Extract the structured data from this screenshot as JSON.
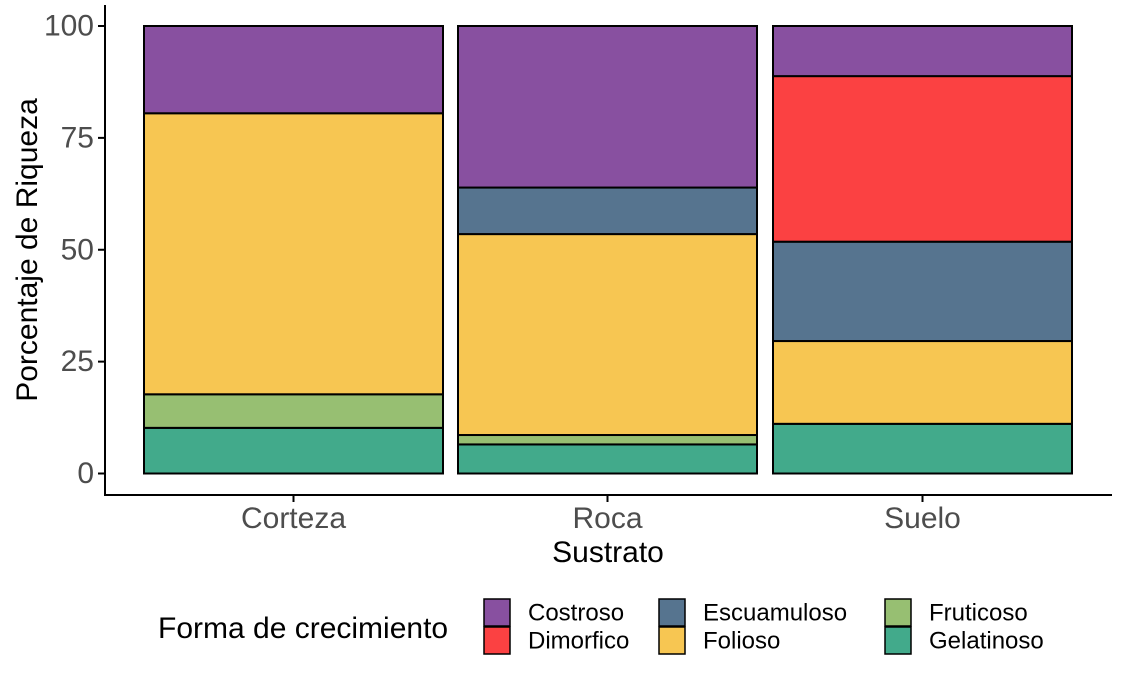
{
  "chart_data": {
    "type": "bar",
    "stacked": true,
    "xlabel": "Sustrato",
    "ylabel": "Porcentaje de Riqueza",
    "ylim": [
      0,
      100
    ],
    "yticks": [
      0,
      25,
      50,
      75,
      100
    ],
    "categories": [
      "Corteza",
      "Roca",
      "Suelo"
    ],
    "series": [
      {
        "name": "Gelatinoso",
        "color": "#42AA8B",
        "values": [
          10.2,
          6.5,
          11.1
        ]
      },
      {
        "name": "Fruticoso",
        "color": "#97BF72",
        "values": [
          7.5,
          2.1,
          0
        ]
      },
      {
        "name": "Folioso",
        "color": "#F7C652",
        "values": [
          62.8,
          44.9,
          18.5
        ]
      },
      {
        "name": "Escuamuloso",
        "color": "#56748F",
        "values": [
          0,
          10.4,
          22.2
        ]
      },
      {
        "name": "Dimorfico",
        "color": "#FB4142",
        "values": [
          0,
          0,
          37.0
        ]
      },
      {
        "name": "Costroso",
        "color": "#8850A0",
        "values": [
          19.5,
          36.1,
          11.2
        ]
      }
    ],
    "legend": {
      "title": "Forma de crecimiento",
      "position": "bottom",
      "order": [
        "Costroso",
        "Dimorfico",
        "Escuamuloso",
        "Folioso",
        "Fruticoso",
        "Gelatinoso"
      ]
    }
  }
}
